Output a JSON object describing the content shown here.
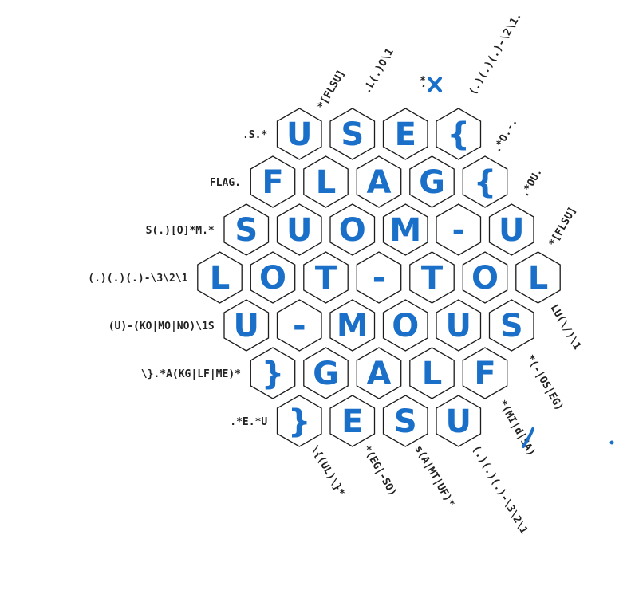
{
  "puzzle": {
    "row_clues": [
      ".S.*",
      "FLAG.",
      "S(.)[O]*M.*",
      "(.)(.)(.)-\\3\\2\\1",
      "(U)-(KO|MO|NO)\\1S",
      "\\}.*A(KG|LF|ME)*",
      ".*E.*U"
    ],
    "upper_right_clues": [
      "*[FLSU]",
      ".L(.)O\\1",
      ".*",
      "(.)(.)(.)-\\2\\1.",
      ".*O.-.",
      ".*OU.",
      "*[FLSU]"
    ],
    "lower_right_clues": [
      "LU(\\/)\\1",
      "*(-|OS|EG)",
      "*(MI|d|SA)",
      "(.)(.)(.)-\\3\\2\\1",
      "s(A|MT|UF)*",
      "*(EG|-SO)",
      "\\{(UL)\\}*"
    ],
    "grid": [
      [
        "U",
        "S",
        "E",
        "{"
      ],
      [
        "F",
        "L",
        "A",
        "G",
        "{"
      ],
      [
        "S",
        "U",
        "O",
        "M",
        "-",
        "U"
      ],
      [
        "L",
        "O",
        "T",
        "-",
        "T",
        "O",
        "L"
      ],
      [
        "U",
        "-",
        "M",
        "O",
        "U",
        "S"
      ],
      [
        "}",
        "G",
        "A",
        "L",
        "F"
      ],
      [
        "}",
        "E",
        "S",
        "U"
      ]
    ],
    "colors": {
      "ink": "#1a6fc9",
      "highlight_green": "#9fd36a",
      "highlight_yellow": "#f5d77a",
      "hex_stroke": "#1c1c1c"
    }
  }
}
